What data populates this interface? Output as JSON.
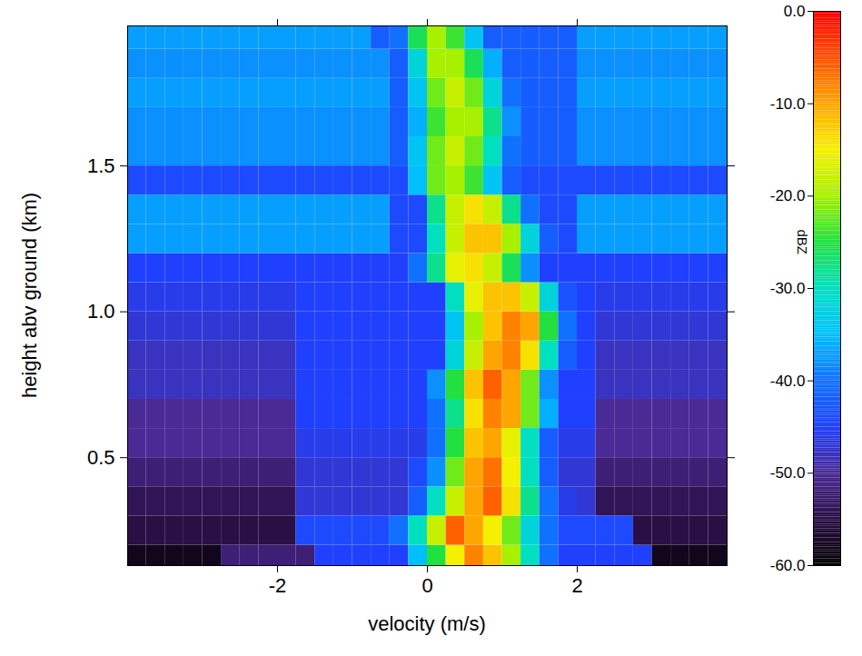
{
  "chart_data": {
    "type": "heatmap",
    "x_label": "velocity (m/s)",
    "y_label": "height abv ground (km)",
    "xlim": [
      -4,
      4
    ],
    "ylim": [
      0.13,
      1.98
    ],
    "xticks": [
      -2,
      0,
      2
    ],
    "yticks": [
      0.5,
      {
        "value": 1,
        "label": "1.0"
      },
      1.5
    ],
    "velocity_edges": [
      -4,
      -3.75,
      -3.5,
      -3.25,
      -3,
      -2.75,
      -2.5,
      -2.25,
      -2,
      -1.75,
      -1.5,
      -1.25,
      -1,
      -0.75,
      -0.5,
      -0.25,
      0,
      0.25,
      0.5,
      0.75,
      1,
      1.25,
      1.5,
      1.75,
      2,
      2.25,
      2.5,
      2.75,
      3,
      3.25,
      3.5,
      3.75,
      4
    ],
    "height_edges": [
      0.1,
      0.2,
      0.3,
      0.4,
      0.5,
      0.6,
      0.7,
      0.8,
      0.9,
      1.0,
      1.1,
      1.2,
      1.3,
      1.4,
      1.5,
      1.6,
      1.7,
      1.8,
      1.9,
      2.0
    ],
    "dbz": [
      [
        -58,
        -58,
        -58,
        -58,
        -58,
        -52,
        -52,
        -52,
        -52,
        -52,
        -45,
        -45,
        -45,
        -45,
        -45,
        -35,
        -25,
        -15,
        -8,
        -12,
        -20,
        -30,
        -40,
        -45,
        -45,
        -45,
        -45,
        -45,
        -58,
        -58,
        -58,
        -58
      ],
      [
        -55,
        -55,
        -55,
        -55,
        -55,
        -55,
        -55,
        -55,
        -55,
        -44,
        -44,
        -44,
        -44,
        -44,
        -40,
        -30,
        -18,
        -6,
        -10,
        -15,
        -22,
        -32,
        -40,
        -44,
        -44,
        -44,
        -44,
        -55,
        -55,
        -55,
        -55,
        -55
      ],
      [
        -54,
        -54,
        -54,
        -54,
        -54,
        -54,
        -54,
        -54,
        -54,
        -47,
        -47,
        -47,
        -47,
        -47,
        -47,
        -42,
        -30,
        -18,
        -10,
        -6,
        -14,
        -28,
        -40,
        -46,
        -47,
        -54,
        -54,
        -54,
        -54,
        -54,
        -54,
        -54
      ],
      [
        -52,
        -52,
        -52,
        -52,
        -52,
        -52,
        -52,
        -52,
        -52,
        -47,
        -47,
        -47,
        -47,
        -47,
        -47,
        -44,
        -38,
        -22,
        -10,
        -7,
        -15,
        -30,
        -42,
        -47,
        -47,
        -52,
        -52,
        -52,
        -52,
        -52,
        -52,
        -52
      ],
      [
        -50,
        -50,
        -50,
        -50,
        -50,
        -50,
        -50,
        -50,
        -50,
        -46,
        -46,
        -46,
        -46,
        -46,
        -46,
        -46,
        -40,
        -25,
        -12,
        -10,
        -16,
        -30,
        -42,
        -46,
        -46,
        -50,
        -50,
        -50,
        -50,
        -50,
        -50,
        -50
      ],
      [
        -50,
        -50,
        -50,
        -50,
        -50,
        -50,
        -50,
        -50,
        -50,
        -45,
        -45,
        -45,
        -45,
        -45,
        -45,
        -45,
        -40,
        -28,
        -14,
        -8,
        -10,
        -22,
        -36,
        -45,
        -45,
        -50,
        -50,
        -50,
        -50,
        -50,
        -50,
        -50
      ],
      [
        -48,
        -48,
        -48,
        -48,
        -48,
        -48,
        -48,
        -48,
        -48,
        -45,
        -45,
        -45,
        -45,
        -45,
        -45,
        -45,
        -38,
        -25,
        -12,
        -6,
        -10,
        -22,
        -38,
        -45,
        -45,
        -48,
        -48,
        -48,
        -48,
        -48,
        -48,
        -48
      ],
      [
        -48,
        -48,
        -48,
        -48,
        -48,
        -48,
        -48,
        -48,
        -48,
        -45,
        -45,
        -45,
        -45,
        -45,
        -45,
        -45,
        -45,
        -32,
        -18,
        -10,
        -8,
        -14,
        -30,
        -42,
        -45,
        -48,
        -48,
        -48,
        -48,
        -48,
        -48,
        -48
      ],
      [
        -47,
        -47,
        -47,
        -47,
        -47,
        -47,
        -47,
        -47,
        -47,
        -45,
        -45,
        -45,
        -45,
        -45,
        -45,
        -45,
        -45,
        -34,
        -20,
        -12,
        -8,
        -10,
        -25,
        -40,
        -45,
        -47,
        -47,
        -47,
        -47,
        -47,
        -47,
        -47
      ],
      [
        -46,
        -46,
        -46,
        -46,
        -46,
        -46,
        -46,
        -46,
        -46,
        -45,
        -45,
        -45,
        -45,
        -45,
        -45,
        -45,
        -45,
        -30,
        -16,
        -12,
        -12,
        -18,
        -32,
        -43,
        -45,
        -46,
        -46,
        -46,
        -46,
        -46,
        -46,
        -46
      ],
      [
        -45,
        -45,
        -45,
        -45,
        -45,
        -45,
        -45,
        -45,
        -45,
        -45,
        -45,
        -45,
        -45,
        -45,
        -45,
        -40,
        -28,
        -16,
        -14,
        -18,
        -26,
        -38,
        -45,
        -45,
        -45,
        -45,
        -45,
        -45,
        -45,
        -45,
        -45,
        -45
      ],
      [
        -37,
        -37,
        -37,
        -37,
        -37,
        -37,
        -37,
        -37,
        -37,
        -37,
        -37,
        -37,
        -37,
        -37,
        -44,
        -44,
        -30,
        -18,
        -12,
        -12,
        -20,
        -32,
        -42,
        -44,
        -37,
        -37,
        -37,
        -37,
        -37,
        -37,
        -37,
        -37
      ],
      [
        -37,
        -37,
        -37,
        -37,
        -37,
        -37,
        -37,
        -37,
        -37,
        -37,
        -37,
        -37,
        -37,
        -37,
        -44,
        -44,
        -28,
        -18,
        -14,
        -18,
        -28,
        -40,
        -44,
        -44,
        -37,
        -37,
        -37,
        -37,
        -37,
        -37,
        -37,
        -37
      ],
      [
        -44,
        -44,
        -44,
        -44,
        -44,
        -44,
        -44,
        -44,
        -44,
        -44,
        -44,
        -44,
        -44,
        -44,
        -44,
        -35,
        -22,
        -20,
        -24,
        -34,
        -42,
        -44,
        -44,
        -44,
        -44,
        -44,
        -44,
        -44,
        -44,
        -44,
        -44,
        -44
      ],
      [
        -38,
        -38,
        -38,
        -38,
        -38,
        -38,
        -38,
        -38,
        -38,
        -38,
        -38,
        -38,
        -38,
        -38,
        -42,
        -34,
        -22,
        -18,
        -22,
        -30,
        -40,
        -42,
        -42,
        -42,
        -38,
        -38,
        -38,
        -38,
        -38,
        -38,
        -38,
        -38
      ],
      [
        -38,
        -38,
        -38,
        -38,
        -38,
        -38,
        -38,
        -38,
        -38,
        -38,
        -38,
        -38,
        -38,
        -38,
        -42,
        -36,
        -24,
        -20,
        -20,
        -28,
        -38,
        -42,
        -42,
        -42,
        -38,
        -38,
        -38,
        -38,
        -38,
        -38,
        -38,
        -38
      ],
      [
        -37,
        -37,
        -37,
        -37,
        -37,
        -37,
        -37,
        -37,
        -37,
        -37,
        -37,
        -37,
        -37,
        -37,
        -42,
        -34,
        -22,
        -18,
        -22,
        -32,
        -40,
        -42,
        -42,
        -42,
        -37,
        -37,
        -37,
        -37,
        -37,
        -37,
        -37,
        -37
      ],
      [
        -38,
        -38,
        -38,
        -38,
        -38,
        -38,
        -38,
        -38,
        -38,
        -38,
        -38,
        -38,
        -38,
        -38,
        -42,
        -32,
        -20,
        -20,
        -26,
        -36,
        -42,
        -42,
        -42,
        -42,
        -38,
        -38,
        -38,
        -38,
        -38,
        -38,
        -38,
        -38
      ],
      [
        -37,
        -37,
        -37,
        -37,
        -37,
        -37,
        -37,
        -37,
        -37,
        -37,
        -37,
        -37,
        -37,
        -42,
        -40,
        -26,
        -20,
        -24,
        -34,
        -42,
        -42,
        -42,
        -42,
        -42,
        -37,
        -37,
        -37,
        -37,
        -37,
        -37,
        -37,
        -37
      ]
    ],
    "colorbar": {
      "label": "dBZ",
      "range": [
        -60,
        0
      ],
      "ticks": [
        {
          "value": 0,
          "label": "0.0"
        },
        {
          "value": -10,
          "label": "-10.0"
        },
        {
          "value": -20,
          "label": "-20.0"
        },
        {
          "value": -30,
          "label": "-30.0"
        },
        {
          "value": -40,
          "label": "-40.0"
        },
        {
          "value": -50,
          "label": "-50.0"
        },
        {
          "value": -60,
          "label": "-60.0"
        }
      ]
    }
  }
}
